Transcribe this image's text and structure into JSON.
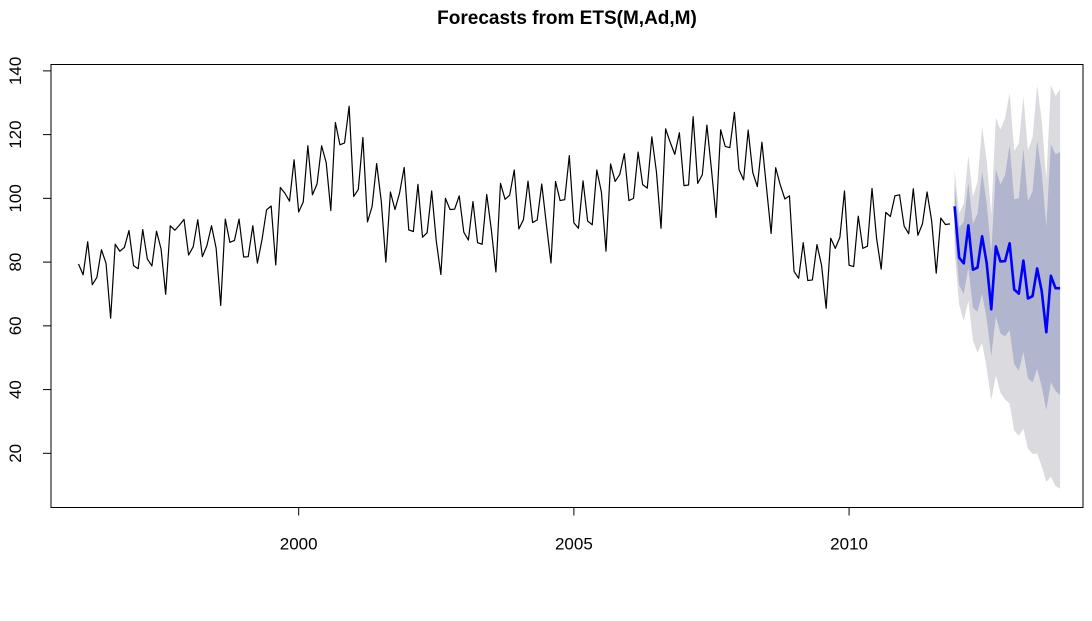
{
  "chart_data": {
    "type": "line",
    "title": "Forecasts from ETS(M,Ad,M)",
    "xlabel": "",
    "ylabel": "",
    "xlim": [
      1995.5,
      2014.25
    ],
    "ylim": [
      3,
      142
    ],
    "x_ticks": [
      2000,
      2005,
      2010
    ],
    "x_tick_labels": [
      "2000",
      "2005",
      "2010"
    ],
    "y_ticks": [
      20,
      40,
      60,
      80,
      100,
      120,
      140
    ],
    "y_tick_labels": [
      "20",
      "40",
      "60",
      "80",
      "100",
      "120",
      "140"
    ],
    "grid": false,
    "legend": "none",
    "colors": {
      "history": "#000000",
      "forecast": "#0000ff",
      "band80": "#b1b5ce",
      "band95": "#dbdbdf"
    },
    "history": {
      "start": 1996.0,
      "step": 0.0833333,
      "values": [
        79.4,
        76.0,
        86.4,
        72.9,
        75.2,
        83.9,
        79.6,
        62.4,
        85.6,
        83.4,
        84.6,
        89.9,
        78.9,
        77.9,
        90.2,
        81.0,
        78.8,
        89.7,
        84.1,
        69.9,
        91.4,
        90.0,
        91.6,
        93.4,
        82.2,
        84.8,
        93.3,
        81.7,
        85.2,
        91.4,
        84.4,
        66.4,
        93.5,
        86.2,
        86.8,
        93.5,
        81.6,
        81.7,
        91.4,
        79.7,
        87.0,
        96.4,
        97.6,
        79.1,
        103.4,
        101.6,
        99.1,
        112.1,
        95.7,
        98.9,
        116.5,
        101.1,
        104.5,
        116.5,
        111.2,
        96.2,
        123.8,
        116.8,
        117.4,
        128.9,
        100.6,
        102.8,
        119.1,
        92.6,
        97.4,
        110.9,
        99.2,
        80.0,
        102.0,
        96.5,
        101.7,
        109.7,
        90.1,
        89.6,
        104.4,
        87.8,
        89.2,
        102.3,
        86.6,
        76.1,
        100.0,
        96.5,
        96.6,
        100.8,
        89.4,
        86.9,
        99.0,
        86.1,
        85.6,
        101.2,
        90.2,
        76.9,
        104.7,
        99.7,
        101.0,
        108.9,
        90.4,
        93.3,
        105.4,
        92.4,
        93.2,
        104.5,
        91.9,
        79.7,
        105.3,
        99.3,
        99.6,
        113.4,
        92.3,
        90.6,
        105.5,
        92.9,
        91.7,
        108.9,
        102.0,
        83.4,
        110.8,
        105.3,
        107.5,
        114.0,
        99.3,
        100.0,
        114.5,
        104.3,
        103.2,
        119.3,
        108.3,
        90.6,
        121.8,
        117.6,
        113.8,
        120.6,
        104.0,
        104.2,
        125.6,
        104.7,
        107.4,
        123.0,
        109.0,
        94.0,
        121.5,
        116.3,
        115.9,
        127.0,
        109.0,
        105.8,
        121.4,
        108.1,
        103.7,
        117.6,
        103.3,
        89.0,
        109.6,
        104.2,
        99.8,
        100.8,
        77.1,
        74.9,
        86.1,
        74.2,
        74.4,
        85.5,
        79.0,
        65.5,
        87.5,
        84.3,
        87.8,
        102.3,
        79.0,
        78.6,
        94.4,
        84.3,
        85.0,
        103.1,
        87.4,
        77.8,
        95.6,
        94.3,
        100.8,
        101.1,
        91.3,
        88.9,
        103.0,
        88.4,
        92.0,
        102.0,
        93.0,
        76.5,
        93.8,
        91.8,
        92.0
      ]
    },
    "forecast": {
      "start": 2011.9167,
      "step": 0.0833333,
      "mean": [
        97.5,
        81.4,
        79.6,
        91.5,
        77.6,
        78.3,
        88.1,
        79.7,
        65.2,
        84.9,
        80.2,
        80.3,
        85.9,
        71.4,
        70.1,
        80.5,
        68.6,
        69.3,
        78.0,
        70.9,
        58.0,
        75.7,
        71.8,
        71.8
      ],
      "lo80": [
        88.8,
        72.7,
        70.0,
        78.3,
        65.7,
        64.4,
        70.1,
        62.2,
        50.5,
        63.0,
        57.6,
        56.7,
        58.6,
        48.0,
        45.9,
        51.8,
        43.5,
        42.2,
        46.5,
        40.9,
        33.5,
        42.3,
        39.6,
        38.3
      ],
      "hi80": [
        104.4,
        90.9,
        92.6,
        104.7,
        92.0,
        95.2,
        108.5,
        98.4,
        82.8,
        109.1,
        104.4,
        107.3,
        116.7,
        99.7,
        100.0,
        115.6,
        99.1,
        102.2,
        118.1,
        108.1,
        91.1,
        117.0,
        113.8,
        114.6
      ],
      "lo95": [
        83.3,
        66.7,
        61.5,
        67.9,
        55.4,
        51.6,
        54.6,
        46.7,
        36.6,
        44.5,
        39.0,
        36.9,
        35.6,
        27.1,
        25.5,
        27.7,
        21.5,
        19.8,
        19.9,
        16.0,
        11.0,
        12.7,
        9.8,
        8.9
      ],
      "hi95": [
        108.8,
        95.2,
        98.4,
        113.5,
        100.5,
        105.2,
        122.4,
        111.9,
        94.9,
        125.3,
        121.6,
        125.2,
        133.1,
        114.9,
        117.2,
        132.0,
        115.1,
        119.1,
        135.4,
        124.4,
        106.0,
        135.5,
        132.1,
        134.2
      ]
    }
  }
}
